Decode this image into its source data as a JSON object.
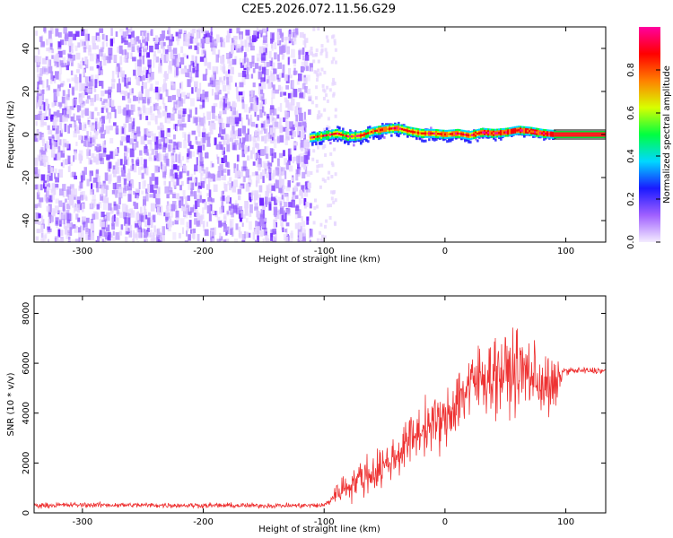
{
  "title": "C2E5.2026.072.11.56.G29",
  "colors": {
    "snr_line": "#ee3333",
    "axis": "#000000",
    "background": "#ffffff"
  },
  "chart_data": [
    {
      "type": "heatmap",
      "title": "C2E5.2026.072.11.56.G29",
      "xlabel": "Height of straight line (km)",
      "ylabel": "Frequency (Hz)",
      "xlim": [
        -340,
        133
      ],
      "ylim": [
        -50,
        50
      ],
      "x_ticks": [
        "-300",
        "-200",
        "-100",
        "0",
        "100"
      ],
      "y_ticks": [
        "-40",
        "-20",
        "0",
        "20",
        "40"
      ],
      "noise_region_x": [
        -340,
        -112
      ],
      "signal_track": {
        "x": [
          -112,
          -100,
          -90,
          -80,
          -70,
          -60,
          -50,
          -40,
          -30,
          -20,
          -10,
          0,
          10,
          20,
          30,
          40,
          50,
          60,
          70,
          80,
          90
        ],
        "freq_hz": [
          -1.5,
          -0.5,
          0.5,
          -1.0,
          -0.5,
          1.5,
          2.5,
          3.0,
          1.5,
          0.5,
          0.5,
          0.0,
          0.5,
          -0.5,
          1.0,
          0.5,
          1.0,
          2.0,
          1.5,
          0.5,
          0.0
        ]
      },
      "flat_band_x": [
        90,
        133
      ],
      "colorbar": {
        "label": "Normalized spectral amplitude",
        "range": [
          0.0,
          1.0
        ],
        "ticks": [
          "0.0",
          "0.2",
          "0.4",
          "0.6",
          "0.8"
        ],
        "colors": [
          "#f4ecff",
          "#a060ff",
          "#1a1aff",
          "#00d8ff",
          "#00ff40",
          "#d8ff00",
          "#ff8000",
          "#ff0000",
          "#ff00a0"
        ]
      }
    },
    {
      "type": "line",
      "xlabel": "Height of straight line (km)",
      "ylabel": "SNR (10 * v/v)",
      "xlim": [
        -340,
        133
      ],
      "ylim": [
        0,
        8700
      ],
      "x_ticks": [
        "-300",
        "-200",
        "-100",
        "0",
        "100"
      ],
      "y_ticks": [
        "0",
        "2000",
        "4000",
        "6000",
        "8000"
      ],
      "series": [
        {
          "name": "SNR",
          "x": [
            -340,
            -300,
            -250,
            -200,
            -150,
            -100,
            -95,
            -90,
            -80,
            -70,
            -60,
            -50,
            -40,
            -30,
            -20,
            -10,
            0,
            10,
            20,
            30,
            40,
            50,
            60,
            70,
            80,
            90,
            98,
            110,
            120,
            133
          ],
          "mean": [
            300,
            320,
            310,
            300,
            290,
            300,
            500,
            800,
            1100,
            1400,
            1600,
            1900,
            2300,
            2900,
            3300,
            3600,
            3600,
            4600,
            5000,
            5400,
            5600,
            5600,
            5700,
            5600,
            5200,
            4900,
            5700,
            5700,
            5700,
            5700
          ],
          "spread": [
            150,
            150,
            150,
            150,
            150,
            150,
            300,
            600,
            900,
            1100,
            1200,
            1200,
            1300,
            1400,
            1500,
            1600,
            1700,
            2100,
            2200,
            2200,
            2200,
            2300,
            2300,
            2200,
            2000,
            1800,
            200,
            200,
            200,
            200
          ]
        }
      ]
    }
  ]
}
